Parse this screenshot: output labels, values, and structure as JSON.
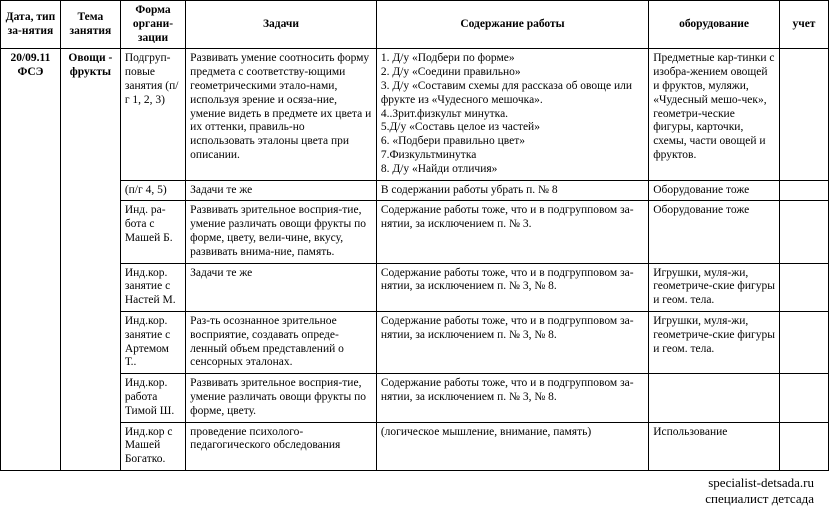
{
  "headers": {
    "date": "Дата, тип за-нятия",
    "topic": "Тема занятия",
    "form": "Форма органи-зации",
    "tasks": "Задачи",
    "content": "Содержание работы",
    "equipment": "оборудование",
    "record": "учет"
  },
  "dateCell": "20/09.11 ФСЭ",
  "topicCell": "Овощи - фрукты",
  "rows": [
    {
      "form": "Подгруп-повые занятия (п/г 1, 2, 3)",
      "tasks": "Развивать умение соотносить форму предмета с соответству-ющими геометрическими этало-нами, используя зрение и осяза-ние, умение видеть в предмете их цвета и их оттенки, правиль-но использовать эталоны цвета при описании.",
      "content": "1. Д/у «Подбери по форме»\n2. Д/у «Соедини правильно»\n3. Д/у «Составим схемы для  рассказа об овоще или фрукте из «Чудесного мешочка».\n4..Зрит.физкульт минутка.\n5.Д/у «Составь целое из  частей»\n6. «Подбери правильно цвет»\n7.Физкультминутка\n8. Д/у «Найди отличия»",
      "equipment": "Предметные кар-тинки с изобра-жением овощей и фруктов, муляжи, «Чудесный мешо-чек», геометри-ческие фигуры, карточки, схемы, части овощей и фруктов.",
      "record": ""
    },
    {
      "form": "(п/г 4, 5)",
      "tasks": "Задачи те же",
      "content": "В содержании работы убрать п. № 8",
      "equipment": "Оборудование тоже",
      "record": ""
    },
    {
      "form": "Инд. ра-бота с Машей Б.",
      "tasks": "Развивать зрительное восприя-тие, умение различать овощи фрукты по форме, цвету, вели-чине, вкусу, развивать внима-ние, память.",
      "content": "Содержание работы тоже, что и в подгрупповом за-нятии, за исключением п. № 3.",
      "equipment": "Оборудование тоже",
      "record": ""
    },
    {
      "form": "Инд.кор. занятие с Настей М.",
      "tasks": "Задачи те же",
      "content": "Содержание работы тоже, что и в подгрупповом за-нятии, за исключением п. № 3, № 8.",
      "equipment": "Игрушки, муля-жи, геометриче-ские фигуры и геом. тела.",
      "record": ""
    },
    {
      "form": "Инд.кор. занятие с Артемом Т..",
      "tasks": "Раз-ть осознанное зрительное восприятие, создавать опреде-ленный объем представлений о сенсорных эталонах.",
      "content": "Содержание работы тоже, что и в подгрупповом за-нятии, за исключением п. № 3, № 8.",
      "equipment": "Игрушки, муля-жи, геометриче-ские фигуры и геом. тела.",
      "record": ""
    },
    {
      "form": "Инд.кор. работа Тимой Ш.",
      "tasks": "Развивать зрительное восприя-тие, умение различать овощи фрукты по форме, цвету.",
      "content": "Содержание работы тоже, что и в подгрупповом за-нятии, за исключением п. № 3, № 8.",
      "equipment": "",
      "record": ""
    },
    {
      "form": "Инд.кор с Машей Богатко.",
      "tasks": "проведение психолого-педагогического обследования",
      "content": "(логическое мышление, внимание, память)",
      "equipment": "Использование",
      "record": ""
    }
  ],
  "watermark": {
    "line1": "specialist-detsada.ru",
    "line2": "специалист детсада"
  }
}
